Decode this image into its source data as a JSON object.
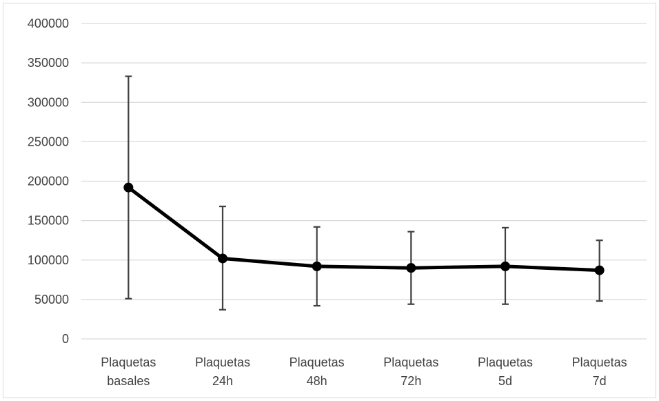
{
  "chart_data": {
    "type": "line",
    "title": "",
    "xlabel": "",
    "ylabel": "",
    "categories": [
      [
        "Plaquetas",
        "basales"
      ],
      [
        "Plaquetas",
        "24h"
      ],
      [
        "Plaquetas",
        "48h"
      ],
      [
        "Plaquetas",
        "72h"
      ],
      [
        "Plaquetas",
        "5d"
      ],
      [
        "Plaquetas",
        "7d"
      ]
    ],
    "series": [
      {
        "values": [
          192000,
          102000,
          92000,
          90000,
          92000,
          87000
        ],
        "error_low": [
          51000,
          37000,
          42000,
          44000,
          44000,
          48000
        ],
        "error_high": [
          333000,
          168000,
          142000,
          136000,
          141000,
          125000
        ]
      }
    ],
    "ylim": [
      0,
      400000
    ],
    "yticks": [
      0,
      50000,
      100000,
      150000,
      200000,
      250000,
      300000,
      350000,
      400000
    ],
    "grid": true,
    "legend": "none",
    "colors": {
      "line": "#000000",
      "marker": "#000000",
      "error_bar": "#404040",
      "grid": "#d9d9d9",
      "tick_text": "#404040"
    }
  }
}
